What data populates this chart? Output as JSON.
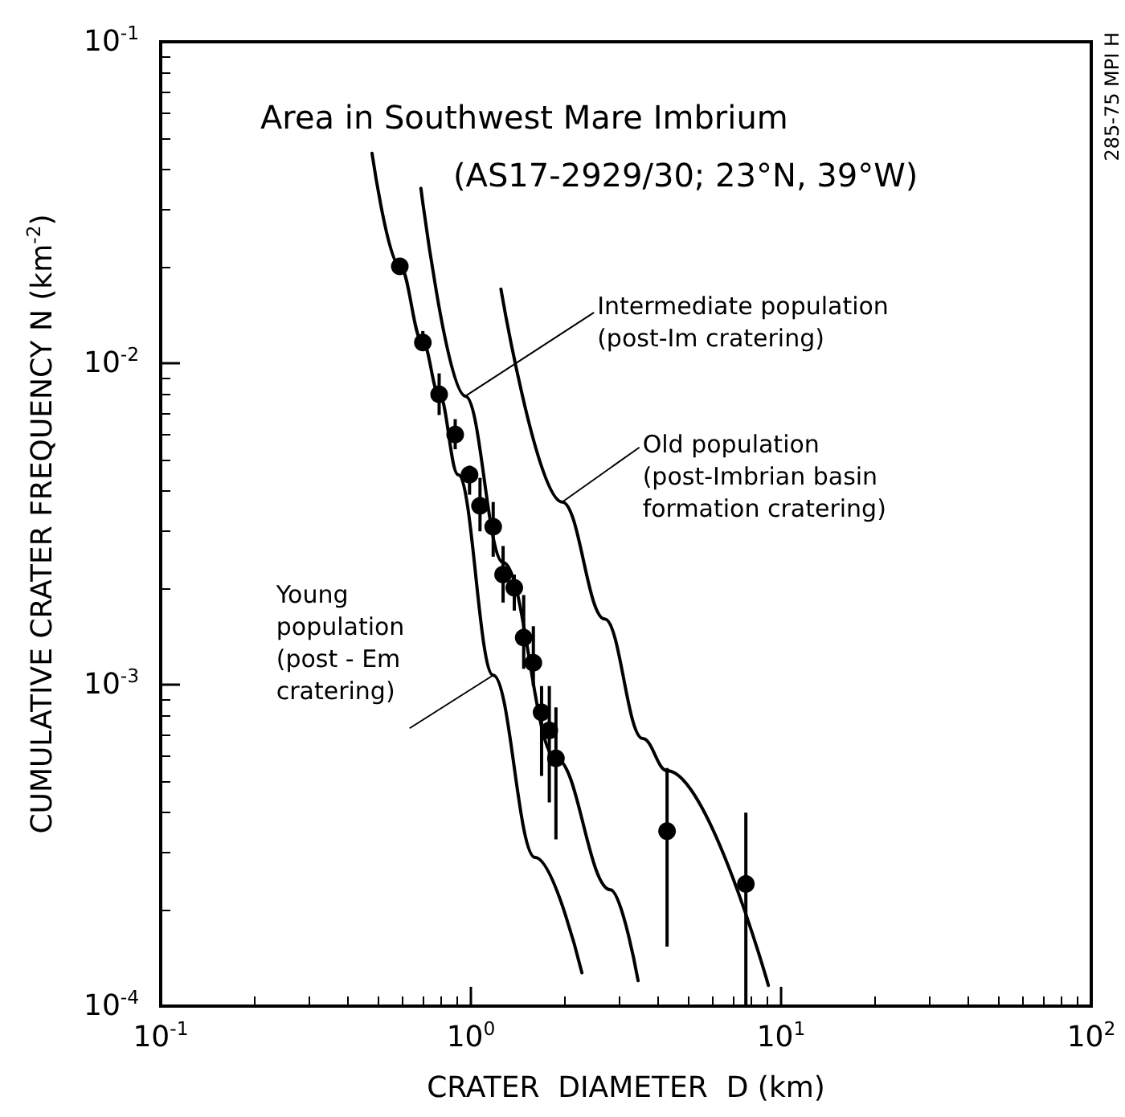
{
  "chart_data": {
    "type": "scatter",
    "title": "Area in Southwest Mare Imbrium",
    "subtitle": "(AS17-2929/30; 23°N, 39°W)",
    "xlabel": "CRATER  DIAMETER  D (km)",
    "ylabel": "CUMULATIVE CRATER FREQUENCY N (km$^{-2}$)",
    "log": "xy",
    "xlim": [
      0.1,
      100
    ],
    "xticks": [
      {
        "value": 0.1,
        "label": "10$^{-1}$"
      },
      {
        "value": 1,
        "label": "10$^{0}$"
      },
      {
        "value": 10,
        "label": "10$^{1}$"
      },
      {
        "value": 100,
        "label": "10$^{2}$"
      }
    ],
    "ylim": [
      0.0001,
      0.1
    ],
    "yticks": [
      {
        "value": 0.0001,
        "label": "10$^{-4}$"
      },
      {
        "value": 0.001,
        "label": "10$^{-3}$"
      },
      {
        "value": 0.01,
        "label": "10$^{-2}$"
      },
      {
        "value": 0.1,
        "label": "10$^{-1}$"
      }
    ],
    "series": [
      {
        "type": "line",
        "color": "#000000",
        "marker": "none",
        "line_style": "solid",
        "x": [
          0.48,
          0.59,
          0.7,
          0.79,
          0.91,
          1.18,
          1.61,
          2.28
        ],
        "values": [
          0.045,
          0.02,
          0.0116,
          0.008,
          0.0045,
          0.00107,
          0.00029,
          0.000127
        ]
      },
      {
        "type": "line",
        "color": "#000000",
        "marker": "none",
        "line_style": "solid",
        "x": [
          0.69,
          0.96,
          1.27,
          1.88,
          2.82,
          3.46
        ],
        "values": [
          0.035,
          0.0079,
          0.0024,
          0.00059,
          0.00023,
          0.00012
        ]
      },
      {
        "type": "line",
        "color": "#000000",
        "marker": "none",
        "line_style": "solid",
        "x": [
          1.25,
          1.97,
          2.7,
          3.58,
          4.29,
          9.1
        ],
        "values": [
          0.017,
          0.0037,
          0.0016,
          0.00068,
          0.00054,
          0.000116
        ]
      },
      {
        "color": "#000000",
        "marker": "circle",
        "x": [
          0.59,
          0.7,
          0.79,
          0.89,
          0.99,
          1.07,
          1.18,
          1.27,
          1.38,
          1.48,
          1.59,
          1.69,
          1.79,
          1.88,
          4.29,
          7.7
        ],
        "values": [
          0.02,
          0.0116,
          0.008,
          0.006,
          0.0045,
          0.0036,
          0.0031,
          0.0022,
          0.002,
          0.0014,
          0.00117,
          0.00082,
          0.00072,
          0.00059,
          0.00035,
          0.00024
        ],
        "errors": [
          null,
          [
            0.011,
            0.0126
          ],
          [
            0.0069,
            0.0093
          ],
          [
            0.0054,
            0.0067
          ],
          [
            0.0039,
            0.0048
          ],
          [
            0.003,
            0.0044
          ],
          [
            0.0025,
            0.0037
          ],
          [
            0.0018,
            0.0027
          ],
          [
            0.0017,
            0.0022
          ],
          [
            0.00112,
            0.0019
          ],
          [
            0.00099,
            0.00152
          ],
          [
            0.00052,
            0.00099
          ],
          [
            0.00043,
            0.00099
          ],
          [
            0.00033,
            0.00085
          ],
          [
            0.000153,
            0.00055
          ],
          [
            0.0001,
            0.0004
          ]
        ]
      }
    ],
    "annotations": [
      {
        "text": "Intermediate population\n(post-Im cratering)",
        "x": 0.96,
        "y": 0.0079
      },
      {
        "text": "Old population\n(post-Imbrian basin\nformation cratering)",
        "x": 1.97,
        "y": 0.0037
      },
      {
        "text": "Young\npopulation\n(post - Em\ncratering)",
        "x": 1.18,
        "y": 0.00107
      },
      "285-75 MPI H"
    ]
  }
}
